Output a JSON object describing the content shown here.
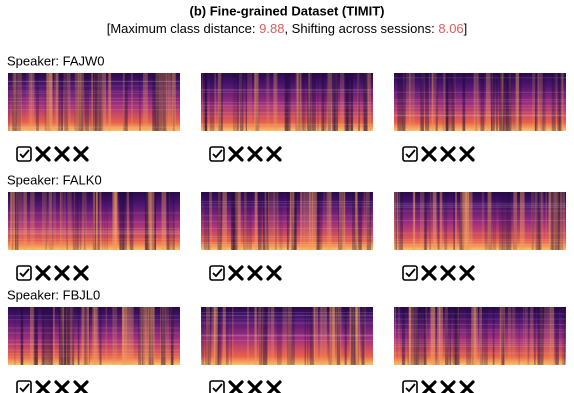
{
  "header": {
    "title": "(b) Fine-grained Dataset (TIMIT)",
    "subtitle": {
      "open": "[Maximum class distance: ",
      "distance": 9.88,
      "middle": ", Shifting across sessions: ",
      "shift": 8.06,
      "close": "]"
    }
  },
  "speakers": [
    "Speaker: FAJW0",
    "Speaker: FALK0",
    "Speaker: FBJL0"
  ]
}
